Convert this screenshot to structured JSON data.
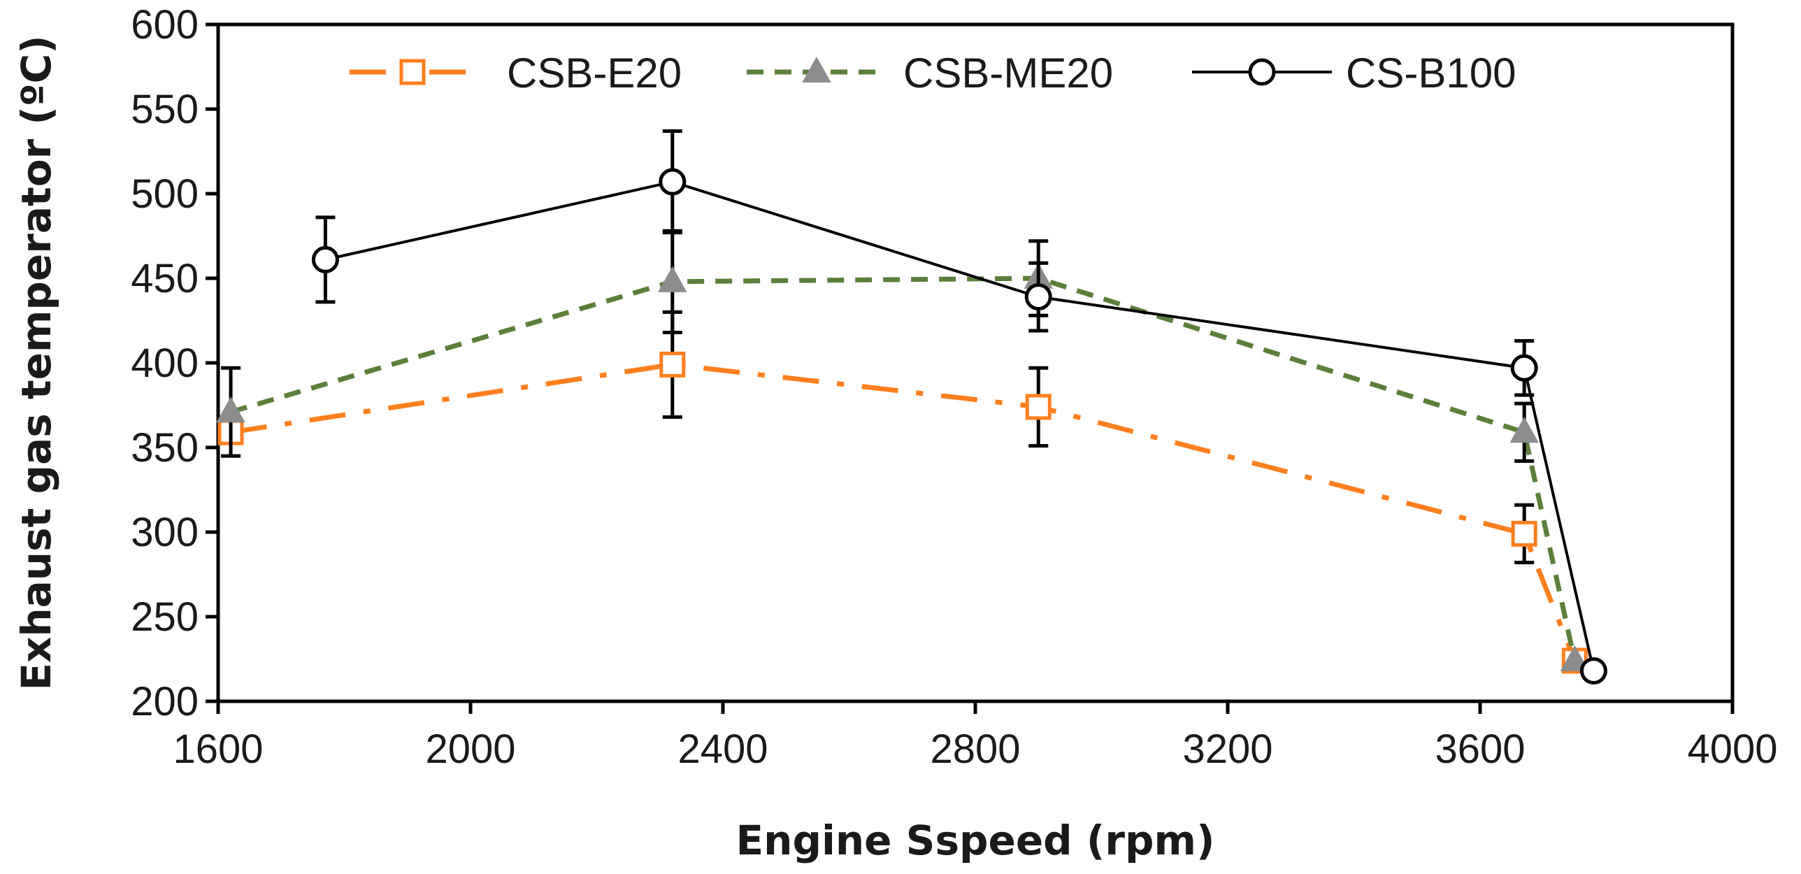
{
  "chart_data": {
    "type": "line",
    "title": "",
    "xlabel": "Engine Sspeed (rpm)",
    "ylabel": "Exhaust gas temperator (ºC)",
    "xlim": [
      1600,
      4000
    ],
    "ylim": [
      200,
      600
    ],
    "xticks": [
      1600,
      2000,
      2400,
      2800,
      3200,
      3600,
      4000
    ],
    "yticks": [
      200,
      250,
      300,
      350,
      400,
      450,
      500,
      550,
      600
    ],
    "grid": false,
    "legend_position": "top",
    "series": [
      {
        "name": "CSB-E20",
        "color": "#FF7F1E",
        "line_style": "dash-dot",
        "marker": "square-open",
        "points": [
          {
            "x": 1620,
            "y": 359,
            "err": null
          },
          {
            "x": 2320,
            "y": 399,
            "err": 31
          },
          {
            "x": 2900,
            "y": 374,
            "err": 23
          },
          {
            "x": 3670,
            "y": 299,
            "err": 17
          },
          {
            "x": 3750,
            "y": 224,
            "err": null
          }
        ]
      },
      {
        "name": "CSB-ME20",
        "color": "#5B7F3A",
        "marker_color": "#8C8C8C",
        "line_style": "dash",
        "marker": "triangle-filled",
        "points": [
          {
            "x": 1620,
            "y": 371,
            "err": 26
          },
          {
            "x": 2320,
            "y": 448,
            "err": 30
          },
          {
            "x": 2900,
            "y": 450,
            "err": 22
          },
          {
            "x": 3670,
            "y": 359,
            "err": 17
          },
          {
            "x": 3750,
            "y": 224,
            "err": null
          }
        ]
      },
      {
        "name": "CS-B100",
        "color": "#000000",
        "line_style": "solid",
        "marker": "circle-open",
        "points": [
          {
            "x": 1770,
            "y": 461,
            "err": 25
          },
          {
            "x": 2320,
            "y": 507,
            "err": 30
          },
          {
            "x": 2900,
            "y": 439,
            "err": 20
          },
          {
            "x": 3670,
            "y": 397,
            "err": 16
          },
          {
            "x": 3780,
            "y": 218,
            "err": null
          }
        ]
      }
    ]
  }
}
